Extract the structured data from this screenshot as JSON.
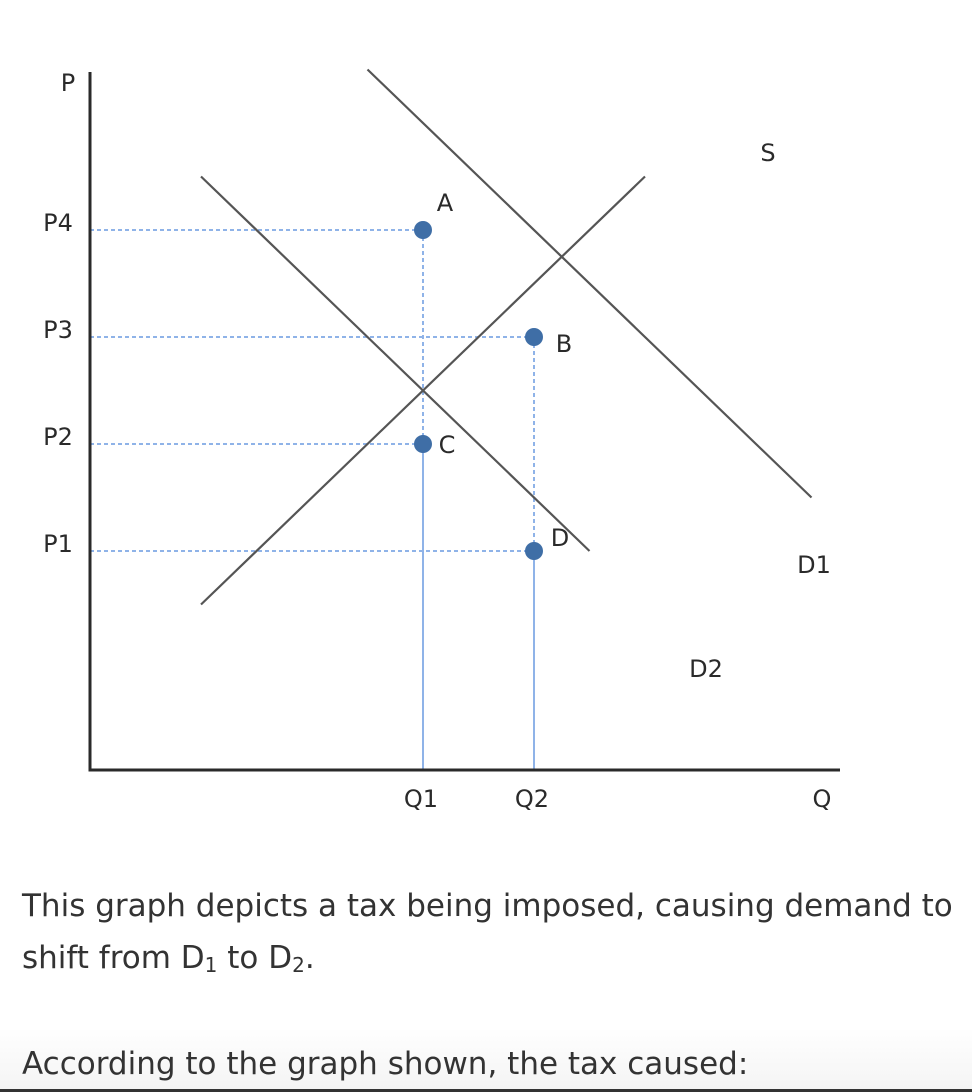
{
  "chart_data": {
    "type": "line",
    "xlabel": "Q",
    "ylabel": "P",
    "y_ticks": [
      "P1",
      "P2",
      "P3",
      "P4"
    ],
    "x_ticks": [
      "Q1",
      "Q2"
    ],
    "series": [
      {
        "name": "S",
        "points": [
          [
            1.0,
            0.5
          ],
          [
            5.0,
            4.5
          ]
        ]
      },
      {
        "name": "D1",
        "points": [
          [
            2.5,
            5.5
          ],
          [
            6.5,
            1.5
          ]
        ]
      },
      {
        "name": "D2",
        "points": [
          [
            1.0,
            4.5
          ],
          [
            4.5,
            1.0
          ]
        ]
      }
    ],
    "points": [
      {
        "label": "A",
        "x": 3,
        "y": 4
      },
      {
        "label": "B",
        "x": 4,
        "y": 3
      },
      {
        "label": "C",
        "x": 3,
        "y": 2
      },
      {
        "label": "D",
        "x": 4,
        "y": 1
      }
    ],
    "xlim": [
      0,
      7
    ],
    "ylim": [
      -1.5,
      5.5
    ]
  },
  "caption": {
    "main": "This graph depicts a tax being imposed, causing demand to shift from D",
    "sub1": "1",
    "mid": " to D",
    "sub2": "2",
    "end": "."
  },
  "question": "According to the graph shown, the tax caused:",
  "colors": {
    "axis": "#2a2a2a",
    "curve": "#555555",
    "dash": "#8fb3e8",
    "point": "#3f6ea6"
  }
}
